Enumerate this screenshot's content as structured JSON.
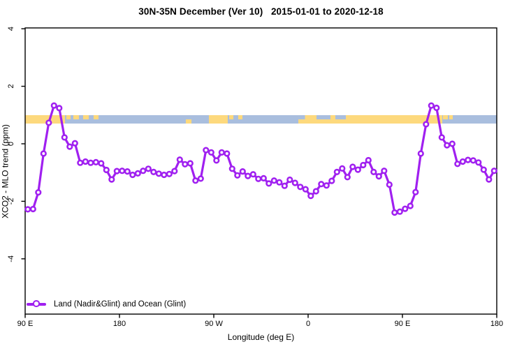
{
  "chart_data": {
    "type": "line",
    "title": "30N-35N December (Ver 10)   2015-01-01 to 2020-12-18",
    "xlabel": "Longitude (deg E)",
    "ylabel": "XCO2 - MLO trend (ppm)",
    "grid": false,
    "x_axis": {
      "note": "longitude shown as continuing degrees east, 90E wrapping around globe back to 180",
      "range": [
        90,
        540
      ],
      "ticks": [
        {
          "lon": 90,
          "label": "90 E"
        },
        {
          "lon": 180,
          "label": "180"
        },
        {
          "lon": 270,
          "label": "90 W"
        },
        {
          "lon": 360,
          "label": "0"
        },
        {
          "lon": 450,
          "label": "90 E"
        },
        {
          "lon": 540,
          "label": "180"
        }
      ]
    },
    "y_axis": {
      "range": [
        -5.95,
        4.05
      ],
      "ticks": [
        {
          "value": 4,
          "label": "4"
        },
        {
          "value": 2,
          "label": "2"
        },
        {
          "value": 0,
          "label": "0"
        },
        {
          "value": -2,
          "label": "-2"
        },
        {
          "value": -4,
          "label": "-4"
        }
      ]
    },
    "series": [
      {
        "name": "Land (Nadir&Glint) and Ocean (Glint)",
        "color": "#A020F0",
        "marker": "open-circle",
        "x": [
          92.5,
          97.5,
          102.5,
          107.5,
          112.5,
          117.5,
          122.5,
          127.5,
          132.5,
          137.5,
          142.5,
          147.5,
          152.5,
          157.5,
          162.5,
          167.5,
          172.5,
          177.5,
          182.5,
          187.5,
          192.5,
          197.5,
          202.5,
          207.5,
          212.5,
          217.5,
          222.5,
          227.5,
          232.5,
          237.5,
          242.5,
          247.5,
          252.5,
          257.5,
          262.5,
          267.5,
          272.5,
          277.5,
          282.5,
          287.5,
          292.5,
          297.5,
          302.5,
          307.5,
          312.5,
          317.5,
          322.5,
          327.5,
          332.5,
          337.5,
          342.5,
          347.5,
          352.5,
          357.5,
          362.5,
          367.5,
          372.5,
          377.5,
          382.5,
          387.5,
          392.5,
          397.5,
          402.5,
          407.5,
          412.5,
          417.5,
          422.5,
          427.5,
          432.5,
          437.5,
          442.5,
          447.5,
          452.5,
          457.5,
          462.5,
          467.5,
          472.5,
          477.5,
          482.5,
          487.5,
          492.5,
          497.5,
          502.5,
          507.5,
          512.5,
          517.5,
          522.5,
          527.5,
          532.5,
          537.5
        ],
        "values": [
          -2.28,
          -2.27,
          -1.69,
          -0.34,
          0.73,
          1.33,
          1.24,
          0.22,
          -0.1,
          0.02,
          -0.66,
          -0.62,
          -0.66,
          -0.64,
          -0.68,
          -0.91,
          -1.24,
          -0.95,
          -0.94,
          -0.96,
          -1.08,
          -1.03,
          -0.94,
          -0.87,
          -0.98,
          -1.04,
          -1.08,
          -1.05,
          -0.95,
          -0.55,
          -0.71,
          -0.68,
          -1.28,
          -1.21,
          -0.22,
          -0.3,
          -0.58,
          -0.3,
          -0.34,
          -0.87,
          -1.1,
          -0.96,
          -1.12,
          -1.06,
          -1.22,
          -1.2,
          -1.38,
          -1.28,
          -1.34,
          -1.46,
          -1.25,
          -1.36,
          -1.5,
          -1.58,
          -1.81,
          -1.65,
          -1.4,
          -1.45,
          -1.29,
          -0.98,
          -0.86,
          -1.16,
          -0.8,
          -0.9,
          -0.74,
          -0.57,
          -0.98,
          -1.13,
          -0.94,
          -1.42,
          -2.39,
          -2.36,
          -2.26,
          -2.16,
          -1.68,
          -0.34,
          0.68,
          1.33,
          1.25,
          0.22,
          -0.05,
          0.0,
          -0.7,
          -0.62,
          -0.56,
          -0.58,
          -0.65,
          -0.9,
          -1.24,
          -0.94
        ]
      }
    ],
    "map_strip": {
      "description": "horizontal land/ocean map band of the 30N-35N zone drawn between ~0.7 and ~1.0 ppm",
      "value_top": 1.0,
      "value_bottom": 0.7,
      "ocean_color": "#a9bede",
      "land_color": "#fdd97d",
      "segments": [
        {
          "lon0": 90,
          "lon1": 128,
          "type": "land",
          "part": "full"
        },
        {
          "lon0": 129.3,
          "lon1": 133.3,
          "type": "land",
          "part": "top"
        },
        {
          "lon0": 136,
          "lon1": 141.3,
          "type": "land",
          "part": "top"
        },
        {
          "lon0": 145.3,
          "lon1": 150.7,
          "type": "land",
          "part": "top"
        },
        {
          "lon0": 155.3,
          "lon1": 160,
          "type": "land",
          "part": "top"
        },
        {
          "lon0": 243.3,
          "lon1": 248.7,
          "type": "land",
          "part": "bottom"
        },
        {
          "lon0": 265.3,
          "lon1": 283.3,
          "type": "land",
          "part": "full"
        },
        {
          "lon0": 284.7,
          "lon1": 288.7,
          "type": "land",
          "part": "top"
        },
        {
          "lon0": 293.3,
          "lon1": 297.3,
          "type": "land",
          "part": "top"
        },
        {
          "lon0": 350.7,
          "lon1": 488,
          "type": "land",
          "part": "full"
        },
        {
          "lon0": 350.7,
          "lon1": 357,
          "type": "ocean",
          "part": "top"
        },
        {
          "lon0": 368,
          "lon1": 381.3,
          "type": "ocean",
          "part": "top"
        },
        {
          "lon0": 386,
          "lon1": 396,
          "type": "ocean",
          "part": "top"
        },
        {
          "lon0": 488.7,
          "lon1": 493.3,
          "type": "land",
          "part": "top"
        },
        {
          "lon0": 494.7,
          "lon1": 498,
          "type": "land",
          "part": "top"
        }
      ]
    },
    "legend": {
      "position": "bottom-left-inside",
      "items": [
        {
          "label": "Land (Nadir&Glint) and Ocean (Glint)",
          "color": "#A020F0",
          "marker": "open-circle"
        }
      ]
    }
  }
}
